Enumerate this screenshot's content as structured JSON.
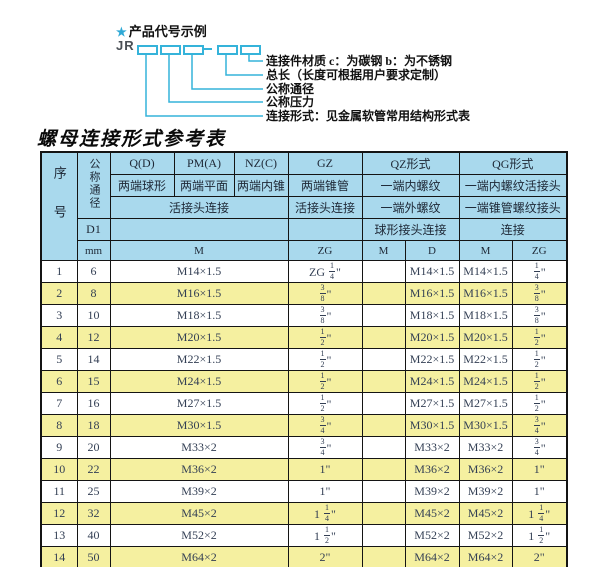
{
  "diagram": {
    "star_icon": "★",
    "heading": "产品代号示例",
    "prefix": "JR",
    "dash": "-",
    "labels": [
      "连接件材质  c：为碳钢  b：为不锈钢",
      "总长（长度可根据用户要求定制）",
      "公称通径",
      "公称压力",
      "连接形式：见金属软管常用结构形式表"
    ],
    "accent_color": "#35b3da"
  },
  "title": "螺母连接形式参考表",
  "table": {
    "header": {
      "seq": "序号",
      "dn": "公称通径",
      "col_q": "Q(D)",
      "col_pm": "PM(A)",
      "col_nz": "NZ(C)",
      "col_gz": "GZ",
      "col_qz": "QZ形式",
      "col_qg": "QG形式",
      "q_desc": "两端球形",
      "pm_desc": "两端平面",
      "nz_desc": "两端内锥",
      "gz_desc": "两端锥管",
      "qz_desc1": "一端内螺纹",
      "qg_desc1": "一端内螺纹活接头",
      "qpmnz_conn": "活接头连接",
      "gz_conn": "活接头连接",
      "qz_desc2": "一端外螺纹",
      "qg_desc2": "一端锥管螺纹接头",
      "d1": "D1",
      "qz_conn": "球形接头连接",
      "qg_conn": "连接",
      "mm": "mm",
      "m_unit": "M",
      "zg_unit": "ZG",
      "qz_m_unit": "M",
      "qz_d_unit": "D",
      "qg_m_unit": "M",
      "qg_zg_unit": "ZG"
    },
    "colors": {
      "header_bg": "#a9d9ed",
      "row_bg": "#ffffff",
      "row_alt_bg": "#f5f0a0",
      "border": "#141414"
    },
    "rows": [
      {
        "seq": "1",
        "dn": "6",
        "m": "M14×1.5",
        "zg": "ZG 1/4\"",
        "qz_m": "",
        "qz_d": "M14×1.5",
        "qg_m": "M14×1.5",
        "qg_zg": "1/4\""
      },
      {
        "seq": "2",
        "dn": "8",
        "m": "M16×1.5",
        "zg": "3/8\"",
        "qz_m": "",
        "qz_d": "M16×1.5",
        "qg_m": "M16×1.5",
        "qg_zg": "3/8\""
      },
      {
        "seq": "3",
        "dn": "10",
        "m": "M18×1.5",
        "zg": "3/8\"",
        "qz_m": "",
        "qz_d": "M18×1.5",
        "qg_m": "M18×1.5",
        "qg_zg": "3/8\""
      },
      {
        "seq": "4",
        "dn": "12",
        "m": "M20×1.5",
        "zg": "1/2\"",
        "qz_m": "",
        "qz_d": "M20×1.5",
        "qg_m": "M20×1.5",
        "qg_zg": "1/2\""
      },
      {
        "seq": "5",
        "dn": "14",
        "m": "M22×1.5",
        "zg": "1/2\"",
        "qz_m": "",
        "qz_d": "M22×1.5",
        "qg_m": "M22×1.5",
        "qg_zg": "1/2\""
      },
      {
        "seq": "6",
        "dn": "15",
        "m": "M24×1.5",
        "zg": "1/2\"",
        "qz_m": "",
        "qz_d": "M24×1.5",
        "qg_m": "M24×1.5",
        "qg_zg": "1/2\""
      },
      {
        "seq": "7",
        "dn": "16",
        "m": "M27×1.5",
        "zg": "1/2\"",
        "qz_m": "",
        "qz_d": "M27×1.5",
        "qg_m": "M27×1.5",
        "qg_zg": "1/2\""
      },
      {
        "seq": "8",
        "dn": "18",
        "m": "M30×1.5",
        "zg": "3/4\"",
        "qz_m": "",
        "qz_d": "M30×1.5",
        "qg_m": "M30×1.5",
        "qg_zg": "3/4\""
      },
      {
        "seq": "9",
        "dn": "20",
        "m": "M33×2",
        "zg": "3/4\"",
        "qz_m": "",
        "qz_d": "M33×2",
        "qg_m": "M33×2",
        "qg_zg": "3/4\""
      },
      {
        "seq": "10",
        "dn": "22",
        "m": "M36×2",
        "zg": "1\"",
        "qz_m": "",
        "qz_d": "M36×2",
        "qg_m": "M36×2",
        "qg_zg": "1\""
      },
      {
        "seq": "11",
        "dn": "25",
        "m": "M39×2",
        "zg": "1\"",
        "qz_m": "",
        "qz_d": "M39×2",
        "qg_m": "M39×2",
        "qg_zg": "1\""
      },
      {
        "seq": "12",
        "dn": "32",
        "m": "M45×2",
        "zg": "1 1/4\"",
        "qz_m": "",
        "qz_d": "M45×2",
        "qg_m": "M45×2",
        "qg_zg": "1 1/4\""
      },
      {
        "seq": "13",
        "dn": "40",
        "m": "M52×2",
        "zg": "1 1/2\"",
        "qz_m": "",
        "qz_d": "M52×2",
        "qg_m": "M52×2",
        "qg_zg": "1 1/2\""
      },
      {
        "seq": "14",
        "dn": "50",
        "m": "M64×2",
        "zg": "2\"",
        "qz_m": "",
        "qz_d": "M64×2",
        "qg_m": "M64×2",
        "qg_zg": "2\""
      }
    ]
  }
}
